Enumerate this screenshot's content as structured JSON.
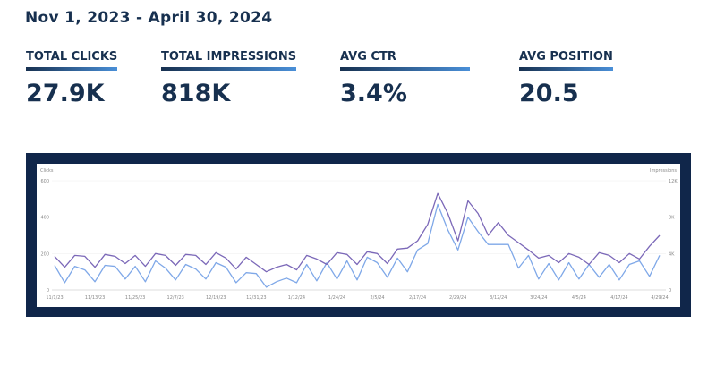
{
  "header": {
    "date_range": "Nov 1, 2023 - April 30, 2024"
  },
  "kpis": [
    {
      "label": "TOTAL CLICKS",
      "value": "27.9K"
    },
    {
      "label": "TOTAL IMPRESSIONS",
      "value": "818K"
    },
    {
      "label": "AVG CTR",
      "value": "3.4%"
    },
    {
      "label": "AVG POSITION",
      "value": "20.5"
    }
  ],
  "colors": {
    "brand": "#17304f",
    "frame": "#10264a",
    "clicks": "#7b68b8",
    "impressions": "#7fa8e8"
  },
  "chart_data": {
    "type": "line",
    "ylabel": "Clicks",
    "y2label": "Impressions",
    "ylim": [
      0,
      600
    ],
    "y2lim": [
      0,
      12000
    ],
    "yticks": [
      "0",
      "200",
      "400",
      "600"
    ],
    "y2ticks": [
      "0",
      "4K",
      "8K",
      "12K"
    ],
    "xticks": [
      "11/1/23",
      "11/13/23",
      "11/25/23",
      "12/7/23",
      "12/19/23",
      "12/31/23",
      "1/12/24",
      "1/24/24",
      "2/5/24",
      "2/17/24",
      "2/29/24",
      "3/12/24",
      "3/24/24",
      "4/5/24",
      "4/17/24",
      "4/29/24"
    ],
    "grid": true,
    "x": [
      "11/1",
      "11/4",
      "11/7",
      "11/10",
      "11/13",
      "11/16",
      "11/19",
      "11/22",
      "11/25",
      "11/28",
      "12/1",
      "12/4",
      "12/7",
      "12/10",
      "12/13",
      "12/16",
      "12/19",
      "12/22",
      "12/25",
      "12/28",
      "12/31",
      "1/3",
      "1/6",
      "1/9",
      "1/12",
      "1/15",
      "1/18",
      "1/21",
      "1/24",
      "1/27",
      "1/30",
      "2/2",
      "2/5",
      "2/8",
      "2/11",
      "2/14",
      "2/17",
      "2/20",
      "2/23",
      "2/26",
      "2/29",
      "3/3",
      "3/6",
      "3/9",
      "3/12",
      "3/15",
      "3/18",
      "3/21",
      "3/24",
      "3/27",
      "3/30",
      "4/2",
      "4/5",
      "4/8",
      "4/11",
      "4/14",
      "4/17",
      "4/20",
      "4/23",
      "4/26",
      "4/29"
    ],
    "series": [
      {
        "name": "Clicks",
        "axis": "left",
        "values": [
          185,
          125,
          190,
          185,
          125,
          195,
          185,
          145,
          190,
          130,
          200,
          190,
          135,
          195,
          190,
          140,
          205,
          175,
          115,
          180,
          140,
          100,
          125,
          140,
          110,
          190,
          170,
          140,
          205,
          195,
          140,
          210,
          200,
          145,
          225,
          230,
          270,
          360,
          530,
          420,
          270,
          490,
          420,
          300,
          370,
          300,
          260,
          220,
          175,
          190,
          150,
          200,
          180,
          140,
          205,
          190,
          150,
          200,
          170,
          240,
          300
        ]
      },
      {
        "name": "Impressions",
        "axis": "right",
        "values": [
          2700,
          800,
          2600,
          2200,
          900,
          2700,
          2600,
          1200,
          2600,
          900,
          3200,
          2400,
          1100,
          2800,
          2300,
          1200,
          3000,
          2500,
          800,
          1900,
          1800,
          300,
          900,
          1300,
          800,
          2800,
          1000,
          3000,
          1200,
          3200,
          1100,
          3600,
          3000,
          1400,
          3500,
          2000,
          4400,
          5100,
          9400,
          6600,
          4400,
          8000,
          6400,
          5000,
          5000,
          5000,
          2400,
          3800,
          1200,
          2900,
          1100,
          3000,
          1200,
          2800,
          1400,
          2800,
          1100,
          2800,
          3200,
          1500,
          3800
        ]
      }
    ]
  }
}
